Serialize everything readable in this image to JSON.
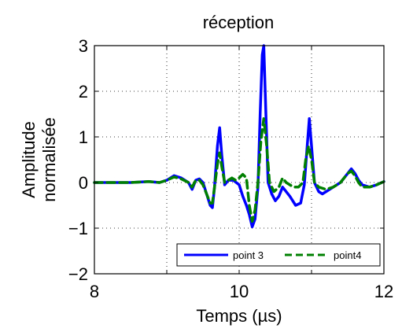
{
  "chart_data": {
    "type": "line",
    "title": "réception",
    "xlabel": "Temps (µs)",
    "ylabel": [
      "Amplitude",
      "normalisée"
    ],
    "xlim": [
      8,
      12
    ],
    "ylim": [
      -2,
      3
    ],
    "xticks": [
      8,
      10,
      12
    ],
    "yticks": [
      -2,
      -1,
      0,
      1,
      2,
      3
    ],
    "xtick_labels": [
      "8",
      "10",
      "12"
    ],
    "ytick_labels": [
      "−2",
      "−1",
      "0",
      "1",
      "2",
      "3"
    ],
    "grid": true,
    "grid_x": [
      9,
      10,
      11
    ],
    "legend_position": "bottom-right",
    "series": [
      {
        "name": "point 3",
        "color": "#0000ff",
        "style": "solid",
        "points": [
          [
            8,
            0
          ],
          [
            8.5,
            0
          ],
          [
            8.75,
            0.02
          ],
          [
            8.9,
            0
          ],
          [
            9.0,
            0.05
          ],
          [
            9.1,
            0.15
          ],
          [
            9.2,
            0.1
          ],
          [
            9.3,
            0.0
          ],
          [
            9.35,
            -0.15
          ],
          [
            9.4,
            0.05
          ],
          [
            9.45,
            0.08
          ],
          [
            9.5,
            0.0
          ],
          [
            9.55,
            -0.25
          ],
          [
            9.6,
            -0.5
          ],
          [
            9.63,
            -0.55
          ],
          [
            9.66,
            -0.1
          ],
          [
            9.7,
            0.8
          ],
          [
            9.73,
            1.2
          ],
          [
            9.76,
            0.6
          ],
          [
            9.8,
            -0.05
          ],
          [
            9.85,
            0.05
          ],
          [
            9.92,
            0.05
          ],
          [
            10.0,
            -0.05
          ],
          [
            10.05,
            -0.3
          ],
          [
            10.1,
            -0.5
          ],
          [
            10.14,
            -0.7
          ],
          [
            10.18,
            -0.97
          ],
          [
            10.22,
            -0.8
          ],
          [
            10.26,
            -0.1
          ],
          [
            10.29,
            1.5
          ],
          [
            10.32,
            2.8
          ],
          [
            10.34,
            3.0
          ],
          [
            10.37,
            1.5
          ],
          [
            10.4,
            0.0
          ],
          [
            10.45,
            -0.25
          ],
          [
            10.5,
            -0.4
          ],
          [
            10.55,
            -0.3
          ],
          [
            10.6,
            -0.1
          ],
          [
            10.7,
            -0.3
          ],
          [
            10.78,
            -0.5
          ],
          [
            10.85,
            -0.45
          ],
          [
            10.9,
            -0.05
          ],
          [
            10.94,
            0.8
          ],
          [
            10.97,
            1.4
          ],
          [
            11.0,
            0.8
          ],
          [
            11.04,
            0.0
          ],
          [
            11.1,
            -0.2
          ],
          [
            11.15,
            -0.25
          ],
          [
            11.2,
            -0.2
          ],
          [
            11.3,
            -0.1
          ],
          [
            11.4,
            0.0
          ],
          [
            11.5,
            0.2
          ],
          [
            11.55,
            0.3
          ],
          [
            11.6,
            0.2
          ],
          [
            11.65,
            0.05
          ],
          [
            11.7,
            -0.05
          ],
          [
            11.8,
            -0.1
          ],
          [
            11.9,
            -0.05
          ],
          [
            12.0,
            0.02
          ]
        ]
      },
      {
        "name": "point4",
        "color": "#008000",
        "style": "dashed",
        "points": [
          [
            8,
            0
          ],
          [
            8.5,
            0
          ],
          [
            8.75,
            0.02
          ],
          [
            8.9,
            0
          ],
          [
            9.0,
            0.05
          ],
          [
            9.1,
            0.12
          ],
          [
            9.2,
            0.08
          ],
          [
            9.3,
            0.0
          ],
          [
            9.35,
            -0.1
          ],
          [
            9.4,
            0.05
          ],
          [
            9.45,
            0.05
          ],
          [
            9.5,
            -0.05
          ],
          [
            9.55,
            -0.25
          ],
          [
            9.6,
            -0.45
          ],
          [
            9.63,
            -0.45
          ],
          [
            9.66,
            -0.1
          ],
          [
            9.7,
            0.4
          ],
          [
            9.73,
            0.65
          ],
          [
            9.76,
            0.35
          ],
          [
            9.8,
            0.0
          ],
          [
            9.85,
            0.05
          ],
          [
            9.9,
            0.1
          ],
          [
            9.95,
            0.05
          ],
          [
            10.0,
            0.1
          ],
          [
            10.05,
            0.18
          ],
          [
            10.1,
            0.1
          ],
          [
            10.14,
            -0.5
          ],
          [
            10.18,
            -0.85
          ],
          [
            10.22,
            -0.6
          ],
          [
            10.26,
            0.0
          ],
          [
            10.3,
            0.9
          ],
          [
            10.34,
            1.4
          ],
          [
            10.38,
            0.8
          ],
          [
            10.42,
            0.0
          ],
          [
            10.48,
            -0.2
          ],
          [
            10.55,
            -0.1
          ],
          [
            10.6,
            0.1
          ],
          [
            10.65,
            0.0
          ],
          [
            10.75,
            -0.1
          ],
          [
            10.82,
            -0.1
          ],
          [
            10.88,
            0.0
          ],
          [
            10.92,
            0.5
          ],
          [
            10.96,
            0.8
          ],
          [
            11.0,
            0.5
          ],
          [
            11.04,
            0.0
          ],
          [
            11.1,
            -0.1
          ],
          [
            11.2,
            -0.15
          ],
          [
            11.3,
            -0.1
          ],
          [
            11.4,
            0.0
          ],
          [
            11.5,
            0.2
          ],
          [
            11.55,
            0.25
          ],
          [
            11.6,
            0.15
          ],
          [
            11.65,
            0.0
          ],
          [
            11.7,
            -0.1
          ],
          [
            11.8,
            -0.1
          ],
          [
            11.9,
            -0.05
          ],
          [
            12.0,
            0.02
          ]
        ]
      }
    ]
  }
}
